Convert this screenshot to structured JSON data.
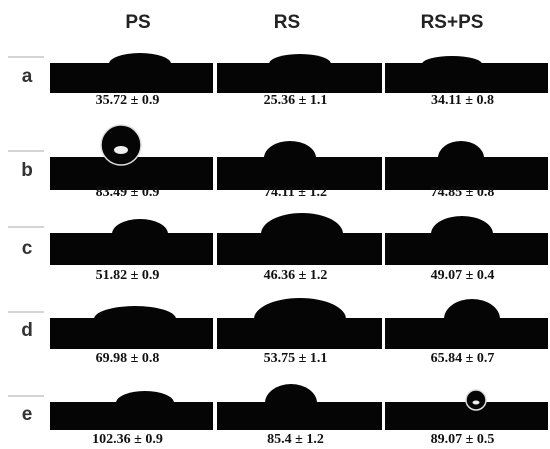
{
  "columns": [
    "PS",
    "RS",
    "RS+PS"
  ],
  "rows": [
    {
      "label": "a",
      "values": [
        "35.72 ± 0.9",
        "25.36 ± 1.1",
        "34.11 ± 0.8"
      ]
    },
    {
      "label": "b",
      "values": [
        "83.49 ± 0.9",
        "74.11 ± 1.2",
        "74.85 ± 0.8"
      ]
    },
    {
      "label": "c",
      "values": [
        "51.82 ± 0.9",
        "46.36 ± 1.2",
        "49.07 ± 0.4"
      ]
    },
    {
      "label": "d",
      "values": [
        "69.98 ± 0.8",
        "53.75 ± 1.1",
        "65.84 ± 0.7"
      ]
    },
    {
      "label": "e",
      "values": [
        "102.36 ± 0.9",
        "85.4 ± 1.2",
        "89.07 ± 0.5"
      ]
    }
  ]
}
